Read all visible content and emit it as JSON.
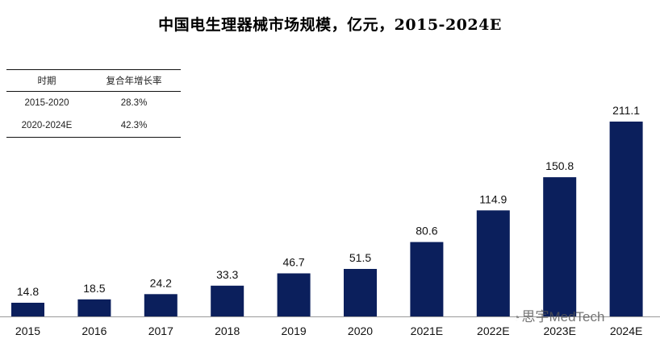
{
  "chart_data": {
    "type": "bar",
    "title": "中国电生理器械市场规模，亿元，2015-2024E",
    "categories": [
      "2015",
      "2016",
      "2017",
      "2018",
      "2019",
      "2020",
      "2021E",
      "2022E",
      "2023E",
      "2024E"
    ],
    "values": [
      14.8,
      18.5,
      24.2,
      33.3,
      46.7,
      51.5,
      80.6,
      114.9,
      150.8,
      211.1
    ],
    "value_labels": [
      "14.8",
      "18.5",
      "24.2",
      "33.3",
      "46.7",
      "51.5",
      "80.6",
      "114.9",
      "150.8",
      "211.1"
    ],
    "bar_color": "#0b1f5c",
    "ylim": [
      0,
      211.1
    ],
    "grid": false,
    "legend": "none"
  },
  "cagr_table": {
    "headers": [
      "时期",
      "复合年增长率"
    ],
    "rows": [
      [
        "2015-2020",
        "28.3%"
      ],
      [
        "2020-2024E",
        "42.3%"
      ]
    ]
  },
  "watermark": {
    "text": "思宇MedTech",
    "icon": "wechat-icon"
  }
}
